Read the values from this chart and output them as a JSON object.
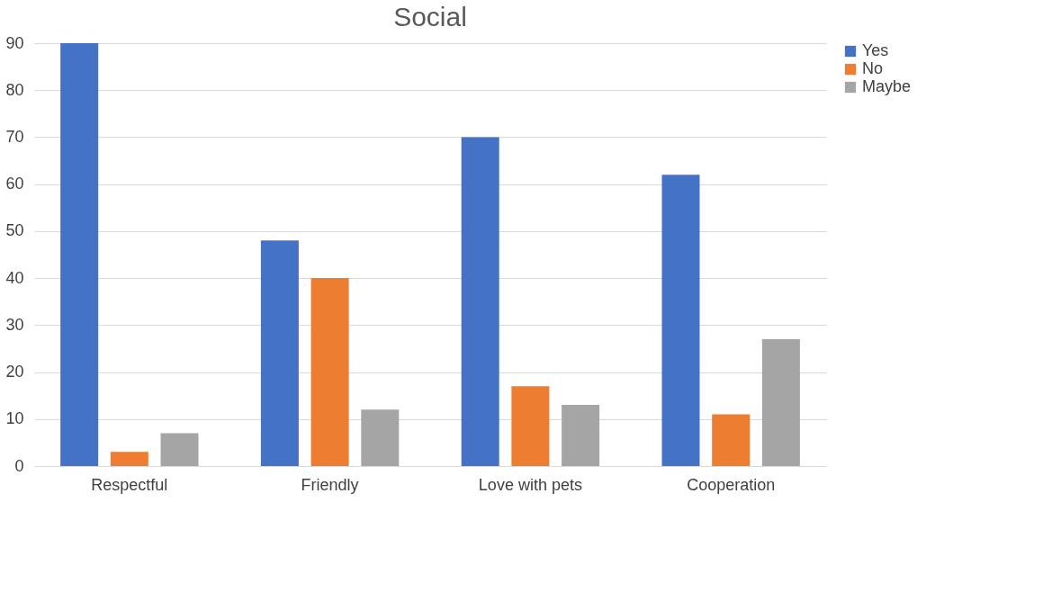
{
  "chart_data": {
    "type": "bar",
    "title": "Social",
    "categories": [
      "Respectful",
      "Friendly",
      "Love with pets",
      "Cooperation"
    ],
    "series": [
      {
        "name": "Yes",
        "color": "#4472c4",
        "values": [
          90,
          48,
          70,
          62
        ]
      },
      {
        "name": "No",
        "color": "#ed7d31",
        "values": [
          3,
          40,
          17,
          11
        ]
      },
      {
        "name": "Maybe",
        "color": "#a5a5a5",
        "values": [
          7,
          12,
          13,
          27
        ]
      }
    ],
    "ylim": [
      0,
      90
    ],
    "yticks": [
      0,
      10,
      20,
      30,
      40,
      50,
      60,
      70,
      80,
      90
    ],
    "grid": "y",
    "legend": "right"
  }
}
